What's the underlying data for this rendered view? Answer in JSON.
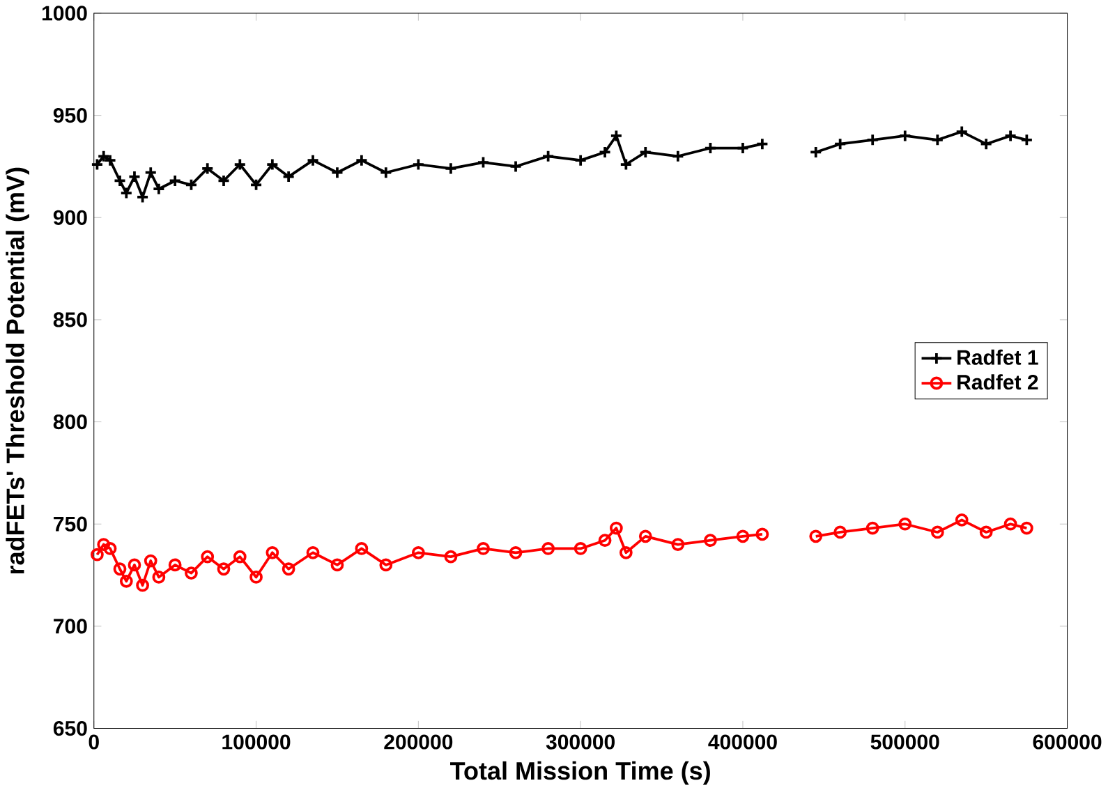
{
  "chart_data": {
    "type": "line",
    "xlabel": "Total Mission Time (s)",
    "ylabel": "radFETs' Threshold Potential (mV)",
    "x": [
      2000,
      6000,
      10000,
      16000,
      20000,
      25000,
      30000,
      35000,
      40000,
      50000,
      60000,
      70000,
      80000,
      90000,
      100000,
      110000,
      120000,
      135000,
      150000,
      165000,
      180000,
      200000,
      220000,
      240000,
      260000,
      280000,
      300000,
      315000,
      322000,
      328000,
      340000,
      360000,
      380000,
      400000,
      412000,
      425000,
      445000,
      460000,
      480000,
      500000,
      520000,
      535000,
      550000,
      565000,
      575000
    ],
    "series": [
      {
        "name": "Radfet 1",
        "color": "#000000",
        "marker": "cross",
        "values": [
          926,
          930,
          928,
          918,
          912,
          920,
          910,
          922,
          914,
          918,
          916,
          924,
          918,
          926,
          916,
          926,
          920,
          928,
          922,
          928,
          922,
          926,
          924,
          927,
          925,
          930,
          928,
          932,
          940,
          926,
          932,
          930,
          934,
          934,
          936,
          null,
          932,
          936,
          938,
          940,
          938,
          942,
          936,
          940,
          938
        ]
      },
      {
        "name": "Radfet 2",
        "color": "#ff0000",
        "marker": "circle",
        "values": [
          735,
          740,
          738,
          728,
          722,
          730,
          720,
          732,
          724,
          730,
          726,
          734,
          728,
          734,
          724,
          736,
          728,
          736,
          730,
          738,
          730,
          736,
          734,
          738,
          736,
          738,
          738,
          742,
          748,
          736,
          744,
          740,
          742,
          744,
          745,
          null,
          744,
          746,
          748,
          750,
          746,
          752,
          746,
          750,
          748
        ]
      }
    ],
    "xlim": [
      0,
      600000
    ],
    "xticks": [
      0,
      100000,
      200000,
      300000,
      400000,
      500000,
      600000
    ],
    "ylim": [
      650,
      1000
    ],
    "yticks": [
      650,
      700,
      750,
      800,
      850,
      900,
      950,
      1000
    ],
    "legend": "right",
    "grid": false,
    "line_style": "solid"
  }
}
